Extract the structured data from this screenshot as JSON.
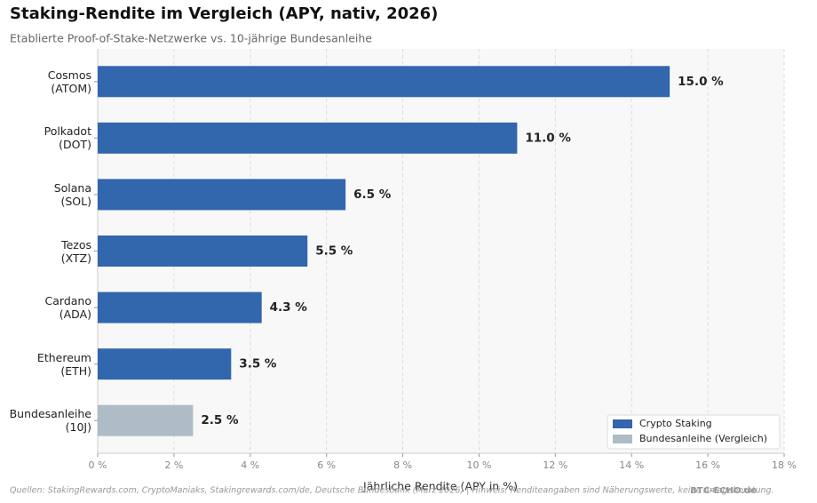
{
  "chart_data": {
    "type": "barh",
    "title": "Staking-Rendite im Vergleich (APY, nativ, 2026)",
    "subtitle": "Etablierte Proof-of-Stake-Netzwerke vs. 10-jährige Bundesanleihe",
    "x_label": "Jährliche Rendite (APY in %)",
    "categories": [
      "Cosmos\n(ATOM)",
      "Polkadot\n(DOT)",
      "Solana\n(SOL)",
      "Tezos\n(XTZ)",
      "Cardano\n(ADA)",
      "Ethereum\n(ETH)",
      "Bundesanleihe\n(10J)"
    ],
    "series": [
      {
        "name": "Crypto Staking",
        "color": "#3266ad",
        "values": [
          15.0,
          11.0,
          6.5,
          5.5,
          4.3,
          3.5,
          null
        ],
        "value_labels": [
          "15.0 %",
          "11.0 %",
          "6.5 %",
          "5.5 %",
          "4.3 %",
          "3.5 %",
          null
        ]
      },
      {
        "name": "Bundesanleihe (Vergleich)",
        "color": "#adbcc5",
        "values": [
          null,
          null,
          null,
          null,
          null,
          null,
          2.5
        ],
        "value_labels": [
          null,
          null,
          null,
          null,
          null,
          null,
          "2.5 %"
        ]
      }
    ],
    "xlim": [
      0,
      18
    ],
    "xticks": [
      {
        "value": 0,
        "label": "0 %"
      },
      {
        "value": 2,
        "label": "2 %"
      },
      {
        "value": 4,
        "label": "4 %"
      },
      {
        "value": 6,
        "label": "6 %"
      },
      {
        "value": 8,
        "label": "8 %"
      },
      {
        "value": 10,
        "label": "10 %"
      },
      {
        "value": 12,
        "label": "12 %"
      },
      {
        "value": 14,
        "label": "14 %"
      },
      {
        "value": 16,
        "label": "16 %"
      },
      {
        "value": 18,
        "label": "18 %"
      }
    ],
    "grid": true,
    "legend": "lower right",
    "source": "Quellen: StakingRewards.com, CryptoManiaks, Stakingrewards.com/de, Deutsche Bundesbank (März 2026) | Hinweis: Renditeangaben sind Näherungswerte, keine Anlageberatung.",
    "watermark": "BTC-ECHO.de"
  }
}
